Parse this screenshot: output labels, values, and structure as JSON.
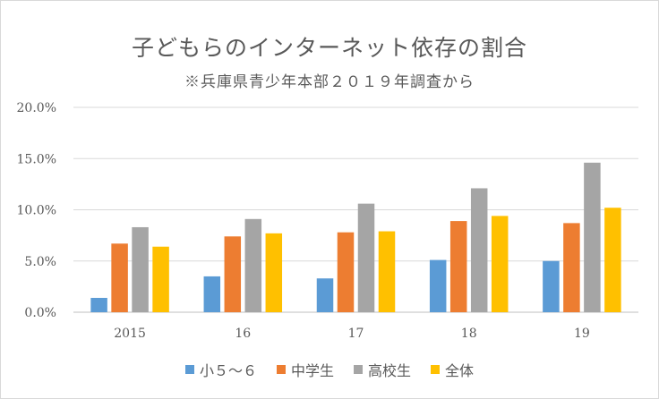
{
  "chart_data": {
    "type": "bar",
    "title": "子どもらのインターネット依存の割合",
    "subtitle": "※兵庫県青少年本部２０１９年調査から",
    "categories": [
      "2015",
      "16",
      "17",
      "18",
      "19"
    ],
    "yticks": [
      "0.0%",
      "5.0%",
      "10.0%",
      "15.0%",
      "20.0%"
    ],
    "ylim": [
      0,
      20
    ],
    "grid": true,
    "legend_position": "bottom",
    "series": [
      {
        "name": "小５～６",
        "color": "#5b9bd5",
        "values": [
          1.4,
          3.5,
          3.3,
          5.1,
          5.0
        ]
      },
      {
        "name": "中学生",
        "color": "#ed7d31",
        "values": [
          6.7,
          7.4,
          7.8,
          8.9,
          8.7
        ]
      },
      {
        "name": "高校生",
        "color": "#a5a5a5",
        "values": [
          8.3,
          9.1,
          10.6,
          12.1,
          14.6
        ]
      },
      {
        "name": "全体",
        "color": "#ffc000",
        "values": [
          6.4,
          7.7,
          7.9,
          9.4,
          10.2
        ]
      }
    ]
  }
}
